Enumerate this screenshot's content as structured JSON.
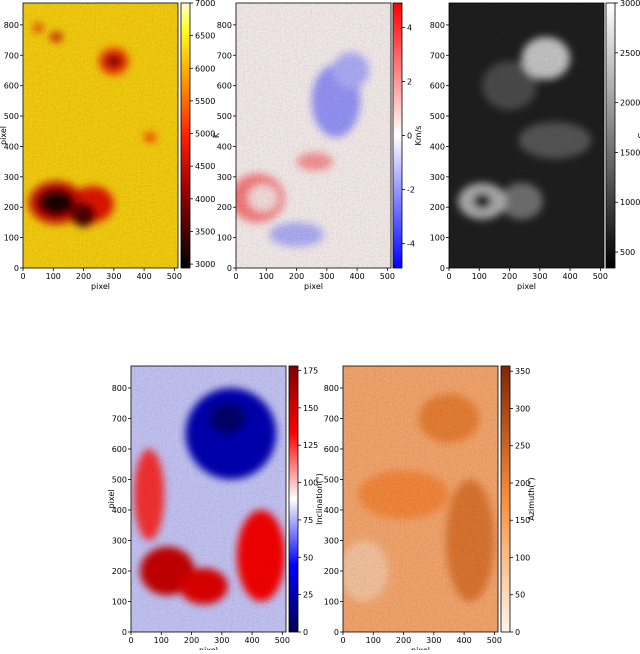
{
  "chart_data": [
    {
      "type": "image",
      "xlabel": "pixel",
      "ylabel": "pixel",
      "xlim": [
        0,
        512
      ],
      "ylim": [
        0,
        872
      ],
      "xticks": [
        0,
        100,
        200,
        300,
        400,
        500
      ],
      "yticks": [
        0,
        100,
        200,
        300,
        400,
        500,
        600,
        700,
        800
      ],
      "colorbar_label": "K",
      "clim": [
        2940,
        7000
      ],
      "cticks": [
        3000,
        3500,
        4000,
        4500,
        5000,
        5500,
        6000,
        6500,
        7000
      ],
      "cmap": "hot"
    },
    {
      "type": "image",
      "xlabel": "pixel",
      "xlim": [
        0,
        512
      ],
      "ylim": [
        0,
        872
      ],
      "xticks": [
        0,
        100,
        200,
        300,
        400,
        500
      ],
      "yticks": [
        0,
        100,
        200,
        300,
        400,
        500,
        600,
        700,
        800
      ],
      "colorbar_label": "Km/s",
      "clim": [
        -4.9,
        4.9
      ],
      "cticks": [
        -4,
        -2,
        0,
        2,
        4
      ],
      "cmap": "bwr"
    },
    {
      "type": "image",
      "xlabel": "pixel",
      "xlim": [
        0,
        512
      ],
      "ylim": [
        0,
        872
      ],
      "xticks": [
        0,
        100,
        200,
        300,
        400,
        500
      ],
      "yticks": [
        0,
        100,
        200,
        300,
        400,
        500,
        600,
        700,
        800
      ],
      "colorbar_label": "G",
      "clim": [
        340,
        3000
      ],
      "cticks": [
        500,
        1000,
        1500,
        2000,
        2500,
        3000
      ],
      "cmap": "gray"
    },
    {
      "type": "image",
      "xlabel": "pixel",
      "ylabel": "pixel",
      "xlim": [
        0,
        512
      ],
      "ylim": [
        0,
        872
      ],
      "xticks": [
        0,
        100,
        200,
        300,
        400,
        500
      ],
      "yticks": [
        0,
        100,
        200,
        300,
        400,
        500,
        600,
        700,
        800
      ],
      "colorbar_label": "Inclination(°)",
      "clim": [
        0,
        178
      ],
      "cticks": [
        0,
        25,
        50,
        75,
        100,
        125,
        150,
        175
      ],
      "cmap": "seismic"
    },
    {
      "type": "image",
      "xlabel": "pixel",
      "xlim": [
        0,
        512
      ],
      "ylim": [
        0,
        872
      ],
      "xticks": [
        0,
        100,
        200,
        300,
        400,
        500
      ],
      "yticks": [
        0,
        100,
        200,
        300,
        400,
        500,
        600,
        700,
        800
      ],
      "colorbar_label": "Azimuth(°)",
      "clim": [
        0,
        357
      ],
      "cticks": [
        0,
        50,
        100,
        150,
        200,
        250,
        300,
        350
      ],
      "cmap": "oranges"
    }
  ]
}
